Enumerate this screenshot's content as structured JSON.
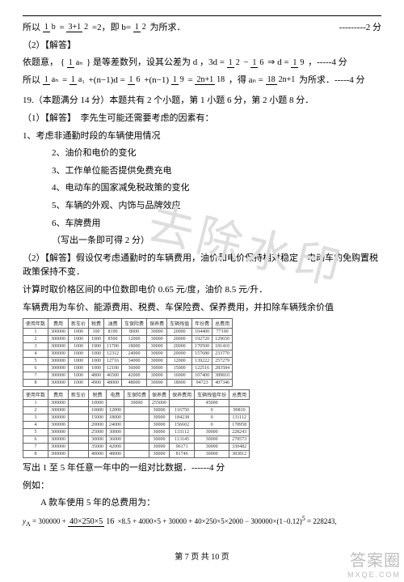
{
  "top": {
    "line1_a": "所以",
    "line1_frac1_n": "1",
    "line1_frac1_d": "b",
    "line1_eq1": "=",
    "line1_frac2_n": "3+1",
    "line1_frac2_d": "2",
    "line1_eq2": "=2，即 b=",
    "line1_frac3_n": "1",
    "line1_frac3_d": "2",
    "line1_b": "为所求．",
    "line1_pts": "---------2 分"
  },
  "sec2_title": "（2）【解答】",
  "l2": {
    "a": "依题意，",
    "brace_l": "{",
    "frac_n": "1",
    "frac_d": "aₙ",
    "brace_r": "}",
    "b": "是等差数列，设其公差为 d ，3d =",
    "f2n": "1",
    "f2d": "2",
    "minus": "−",
    "f3n": "1",
    "f3d": "6",
    "arrow": "⇒ d =",
    "f4n": "1",
    "f4d": "9",
    "tail": "，-----4 分"
  },
  "l3": {
    "a": "所以",
    "f1n": "1",
    "f1d": "aₙ",
    "eq1": "=",
    "f2n": "1",
    "f2d": "a₁",
    "plus": "+(n−1)d =",
    "f3n": "1",
    "f3d": "6",
    "plus2": "+(n−1)",
    "f4n": "1",
    "f4d": "9",
    "eq2": "=",
    "f5n": "2n+1",
    "f5d": "18",
    "mid": "，得 aₙ =",
    "f6n": "18",
    "f6d": "2n+1",
    "tail": "为所求．-----4 分"
  },
  "q19": "19.（本题满分 14 分）本题共有 2 个小题，第 1 小题 6 分，第 2 小题 8 分．",
  "s1": "（1）【解答】　李先生可能还需要考虑的因素有：",
  "s1_1": "1、考虑非通勤时段的车辆使用情况",
  "s1_2a": "2、油价和电价的变化",
  "s1_2b": "3、工作单位能否提供免费充电",
  "s1_2c": "4、电动车的国家减免税政策的变化",
  "s1_2d": "5、车辆的外观、内饰与品牌效应",
  "s1_2e": "6、车牌费用",
  "s1_note": "（写出一条即可得 2 分）",
  "s2": "（2）【解答】假设仅考虑通勤时的车辆费用，油价和电价保持相对稳定，电动车的免购置税政策保持不变．",
  "s2b": "计算时取价格区间的中位数即电价 0.65 元/度，油价 8.5 元/升．",
  "s2c": "车辆费用为车价、能源费用、税费、车保险费、保养费用，并扣除车辆残余价值",
  "table1": {
    "headers": [
      "使用年数",
      "费用",
      "新车价",
      "税费",
      "油费",
      "车保险费",
      "保养费",
      "车辆残值",
      "年份费",
      "总费用"
    ],
    "rows": [
      [
        "1",
        "300000",
        "1000",
        "100",
        "8190",
        "8000",
        "30000",
        "20000",
        "104400",
        "77190"
      ],
      [
        "2",
        "300000",
        "1000",
        "1000",
        "8500",
        "12000",
        "30000",
        "20000",
        "192720",
        "129650"
      ],
      [
        "3",
        "300000",
        "1000",
        "1900",
        "11700",
        "18000",
        "30000",
        "20000",
        "170500",
        "181410"
      ],
      [
        "4",
        "300000",
        "1000",
        "1000",
        "12312",
        "24000",
        "30000",
        "20000",
        "157680",
        "233770"
      ],
      [
        "5",
        "300000",
        "1000",
        "1000",
        "12716",
        "34000",
        "30000",
        "12000",
        "139222",
        "257279"
      ],
      [
        "6",
        "300000",
        "1000",
        "1000",
        "12100",
        "36000",
        "30000",
        "15000",
        "122516",
        "283584"
      ],
      [
        "7",
        "300000",
        "1000",
        "4800",
        "46500",
        "42000",
        "30000",
        "16000",
        "107400",
        "389810"
      ],
      [
        "8",
        "300000",
        "1000",
        "4900",
        "48000",
        "48000",
        "30000",
        "18000",
        "94723",
        "407346"
      ]
    ]
  },
  "table2": {
    "headers": [
      "使用年数",
      "费用",
      "新车价",
      "税费",
      "电费",
      "车保险费",
      "保养费",
      "保养费用",
      "车辆残值年份",
      "总费用"
    ],
    "rows": [
      [
        "1",
        "300000",
        "",
        "10000",
        "",
        "30000",
        "255000",
        "",
        "45000"
      ],
      [
        "2",
        "300000",
        "",
        "10000",
        "12000",
        "",
        "30000",
        "116750",
        "0",
        "99810"
      ],
      [
        "3",
        "300000",
        "",
        "15000",
        "18000",
        "",
        "30000",
        "184238",
        "0",
        "131112"
      ],
      [
        "4",
        "300000",
        "",
        "20000",
        "24000",
        "",
        "30000",
        "156602",
        "0",
        "178958"
      ],
      [
        "5",
        "300000",
        "",
        "25000",
        "30000",
        "",
        "30000",
        "133112",
        "30000",
        "228243"
      ],
      [
        "6",
        "300000",
        "",
        "30000",
        "36000",
        "",
        "30000",
        "113145",
        "30000",
        "278573"
      ],
      [
        "7",
        "300000",
        "",
        "35000",
        "42000",
        "",
        "30000",
        "96171",
        "30000",
        "330482"
      ],
      [
        "8",
        "300000",
        "",
        "40000",
        "48000",
        "",
        "30000",
        "81746",
        "30000",
        "383812"
      ]
    ]
  },
  "after_tables": "写出 1 至 5 年任意一年中的一组对比数据．------4 分",
  "eg": "例如：",
  "eg2": "A 款车使用 5 年的总费用为：",
  "formula": {
    "lhs": "y_A = 300000 +",
    "fn": "40×250×5",
    "fd": "16",
    "mid": "×8.5 + 4000×5 + 30000 + 40×250×5×2000 − 300000×(1−0.12)",
    "exp": "5",
    "rhs": "= 228243,"
  },
  "footer": "第 7 页 共 10 页",
  "wm1": "去除水印",
  "wm2a": "答案圈",
  "wm2b": "MXQE.COM"
}
